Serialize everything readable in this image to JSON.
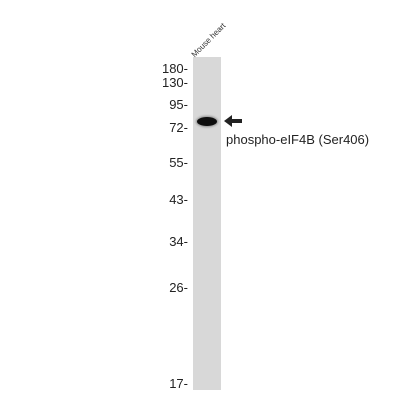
{
  "sample": {
    "label": "Mouse heart"
  },
  "markers": [
    {
      "label": "180-"
    },
    {
      "label": "130-"
    },
    {
      "label": "95-"
    },
    {
      "label": "72-"
    },
    {
      "label": "55-"
    },
    {
      "label": "43-"
    },
    {
      "label": "34-"
    },
    {
      "label": "26-"
    },
    {
      "label": "17-"
    }
  ],
  "target": {
    "label": "phospho-eIF4B (Ser406)"
  },
  "colors": {
    "lane": "#d8d8d8",
    "band": "#0e0e0e",
    "text": "#222222"
  },
  "icons": {
    "arrow": "left-arrow-icon"
  }
}
